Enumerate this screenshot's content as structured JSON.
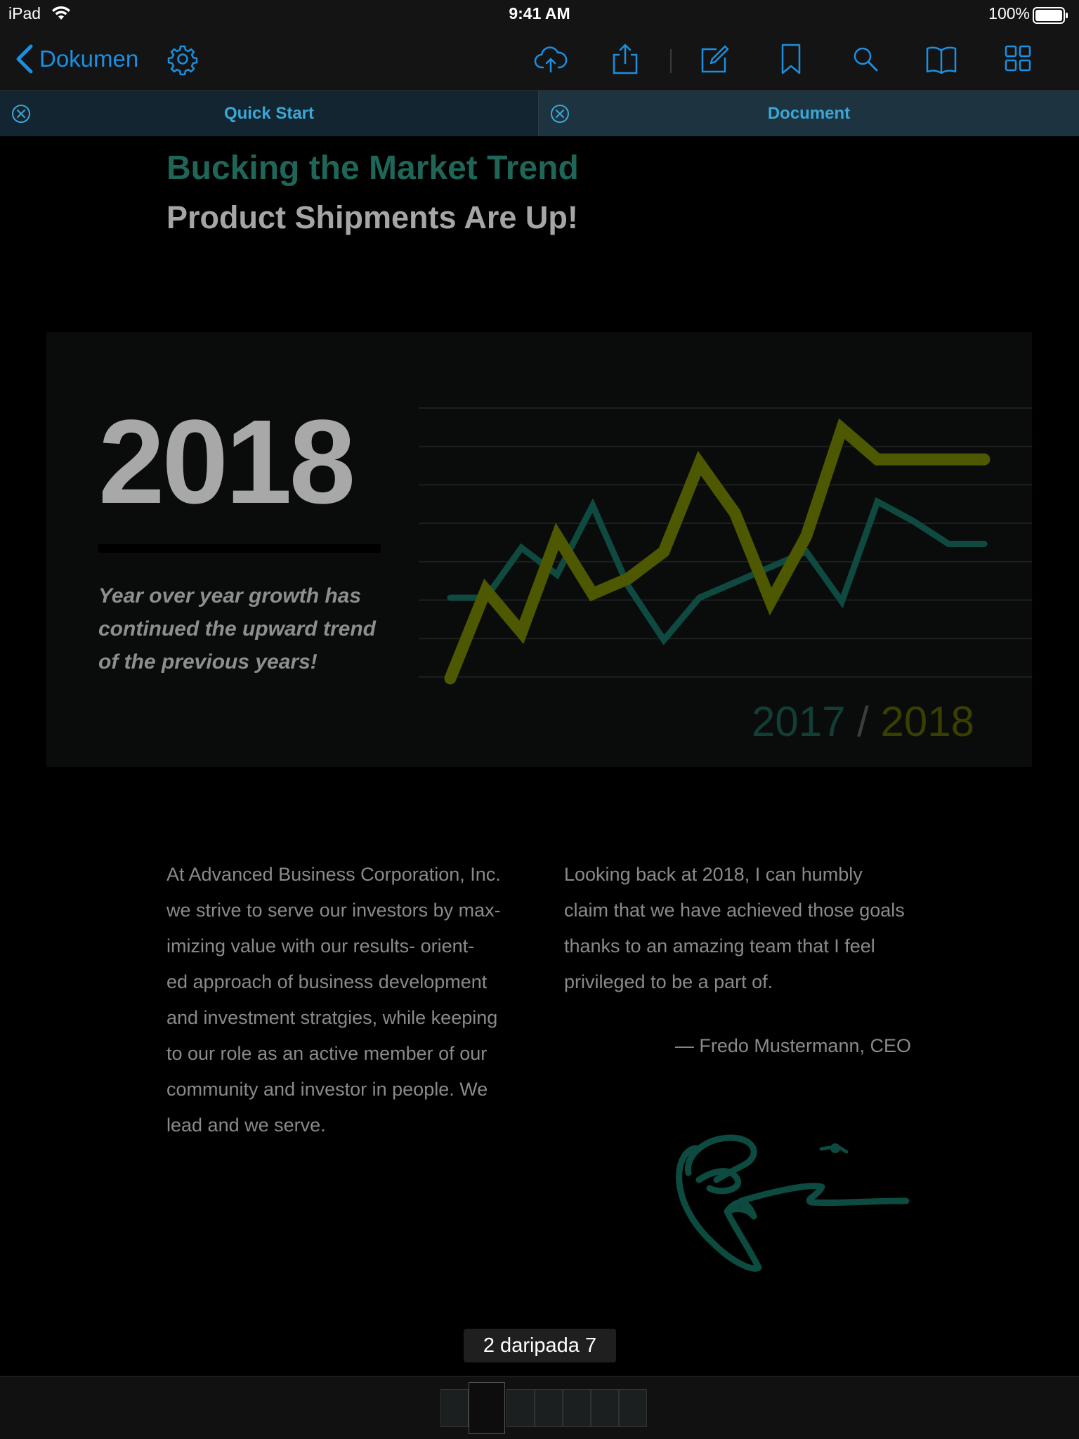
{
  "status_bar": {
    "device": "iPad",
    "time": "9:41 AM",
    "battery": "100%"
  },
  "toolbar": {
    "back_label": "Dokumen",
    "icons": [
      "settings-icon",
      "cloud-upload-icon",
      "share-icon",
      "edit-icon",
      "bookmark-icon",
      "search-icon",
      "book-icon",
      "grid-icon"
    ],
    "accent_color": "#1b8fe0"
  },
  "tabs": [
    {
      "label": "Quick Start",
      "active": false
    },
    {
      "label": "Document",
      "active": true
    }
  ],
  "document": {
    "title": "Bucking the Market Trend",
    "subtitle": "Product Shipments Are Up!",
    "big_year": "2018",
    "growth_text": "Year over year growth has continued the upward trend of the previous years!",
    "legend": {
      "a": "2017",
      "sep": "/",
      "b": "2018"
    },
    "col_left": "At Advanced Business Corporation, Inc.\nwe strive to serve our investors  by max-\nimizing value with our results- orient-\ned approach of business development\nand investment stratgies, while keeping\nto our role as an active member of our\ncommunity and investor in people. We\nlead and we serve.",
    "col_right": "Looking back at 2018, I can humbly\nclaim that we have achieved those goals\nthanks to an amazing team that I feel\nprivileged to be a part of.",
    "ceo_quote": "— Fredo Mustermann, CEO"
  },
  "chart_data": {
    "type": "line",
    "x": [
      0,
      1,
      2,
      3,
      4,
      5,
      6,
      7,
      8,
      9,
      10,
      11,
      12,
      13,
      14,
      15
    ],
    "series": [
      {
        "name": "2017",
        "color": "#0f4a40",
        "values": [
          2.1,
          2.1,
          3.4,
          2.7,
          4.5,
          2.4,
          1.0,
          2.1,
          2.5,
          2.9,
          3.3,
          2.0,
          4.6,
          4.1,
          3.5,
          3.5
        ]
      },
      {
        "name": "2018",
        "color": "#4e5800",
        "values": [
          0.0,
          2.3,
          1.2,
          3.7,
          2.2,
          2.6,
          3.3,
          5.6,
          4.3,
          2.0,
          3.7,
          6.5,
          5.7,
          5.7,
          5.7,
          5.7
        ]
      }
    ],
    "ylim": [
      0,
      7
    ],
    "grid": true
  },
  "page_indicator": "2 daripada 7",
  "thumbnails": {
    "count": 7,
    "active": 2
  }
}
